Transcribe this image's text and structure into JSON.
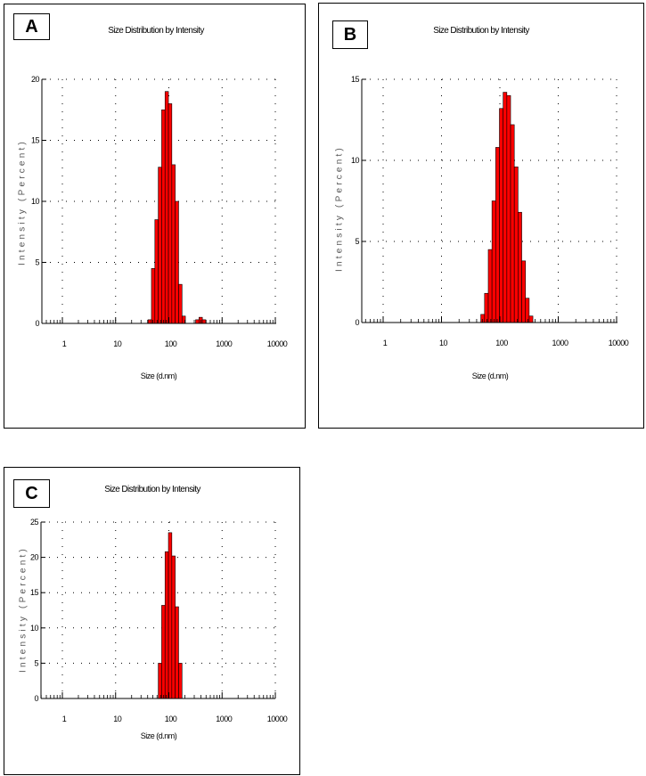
{
  "chart_data": [
    {
      "type": "bar",
      "panel_label": "A",
      "title": "Size Distribution by Intensity",
      "xlabel": "Size (d.nm)",
      "ylabel": "Intensity (Percent)",
      "x_scale": "log",
      "xlim": [
        0.4,
        10000
      ],
      "ylim": [
        0,
        20
      ],
      "x_ticks": [
        "1",
        "10",
        "100",
        "1000",
        "10000"
      ],
      "y_ticks": [
        "0",
        "5",
        "10",
        "15",
        "20"
      ],
      "grid": true,
      "bar_color": "#ff0000",
      "bins": [
        {
          "size": 43.8,
          "value": 0.3
        },
        {
          "size": 50.7,
          "value": 4.5
        },
        {
          "size": 58.8,
          "value": 8.5
        },
        {
          "size": 68.1,
          "value": 12.8
        },
        {
          "size": 78.8,
          "value": 17.5
        },
        {
          "size": 91.3,
          "value": 19.0
        },
        {
          "size": 105.7,
          "value": 18.0
        },
        {
          "size": 122.4,
          "value": 13.0
        },
        {
          "size": 141.8,
          "value": 10.0
        },
        {
          "size": 164.2,
          "value": 3.2
        },
        {
          "size": 190.1,
          "value": 0.6
        },
        {
          "size": 342.0,
          "value": 0.3
        },
        {
          "size": 396.1,
          "value": 0.5
        },
        {
          "size": 458.7,
          "value": 0.3
        }
      ]
    },
    {
      "type": "bar",
      "panel_label": "B",
      "title": "Size Distribution by Intensity",
      "xlabel": "Size (d.nm)",
      "ylabel": "Intensity (Percent)",
      "x_scale": "log",
      "xlim": [
        0.4,
        10000
      ],
      "ylim": [
        0,
        15
      ],
      "x_ticks": [
        "1",
        "10",
        "100",
        "1000",
        "10000"
      ],
      "y_ticks": [
        "0",
        "5",
        "10",
        "15"
      ],
      "grid": true,
      "bar_color": "#ff0000",
      "bins": [
        {
          "size": 50.7,
          "value": 0.5
        },
        {
          "size": 58.8,
          "value": 1.8
        },
        {
          "size": 68.1,
          "value": 4.5
        },
        {
          "size": 78.8,
          "value": 7.5
        },
        {
          "size": 91.3,
          "value": 10.8
        },
        {
          "size": 105.7,
          "value": 13.2
        },
        {
          "size": 122.4,
          "value": 14.2
        },
        {
          "size": 141.8,
          "value": 14.0
        },
        {
          "size": 164.2,
          "value": 12.2
        },
        {
          "size": 190.1,
          "value": 9.6
        },
        {
          "size": 220.2,
          "value": 6.8
        },
        {
          "size": 255.0,
          "value": 3.8
        },
        {
          "size": 295.3,
          "value": 1.5
        },
        {
          "size": 342.0,
          "value": 0.4
        }
      ]
    },
    {
      "type": "bar",
      "panel_label": "C",
      "title": "Size Distribution by Intensity",
      "xlabel": "Size (d.nm)",
      "ylabel": "Intensity (Percent)",
      "x_scale": "log",
      "xlim": [
        0.4,
        10000
      ],
      "ylim": [
        0,
        25
      ],
      "x_ticks": [
        "1",
        "10",
        "100",
        "1000",
        "10000"
      ],
      "y_ticks": [
        "0",
        "5",
        "10",
        "15",
        "20",
        "25"
      ],
      "grid": true,
      "bar_color": "#ff0000",
      "bins": [
        {
          "size": 68.1,
          "value": 5.0
        },
        {
          "size": 78.8,
          "value": 13.2
        },
        {
          "size": 91.3,
          "value": 20.8
        },
        {
          "size": 105.7,
          "value": 23.5
        },
        {
          "size": 122.4,
          "value": 20.2
        },
        {
          "size": 141.8,
          "value": 13.0
        },
        {
          "size": 164.2,
          "value": 5.0
        }
      ]
    }
  ]
}
